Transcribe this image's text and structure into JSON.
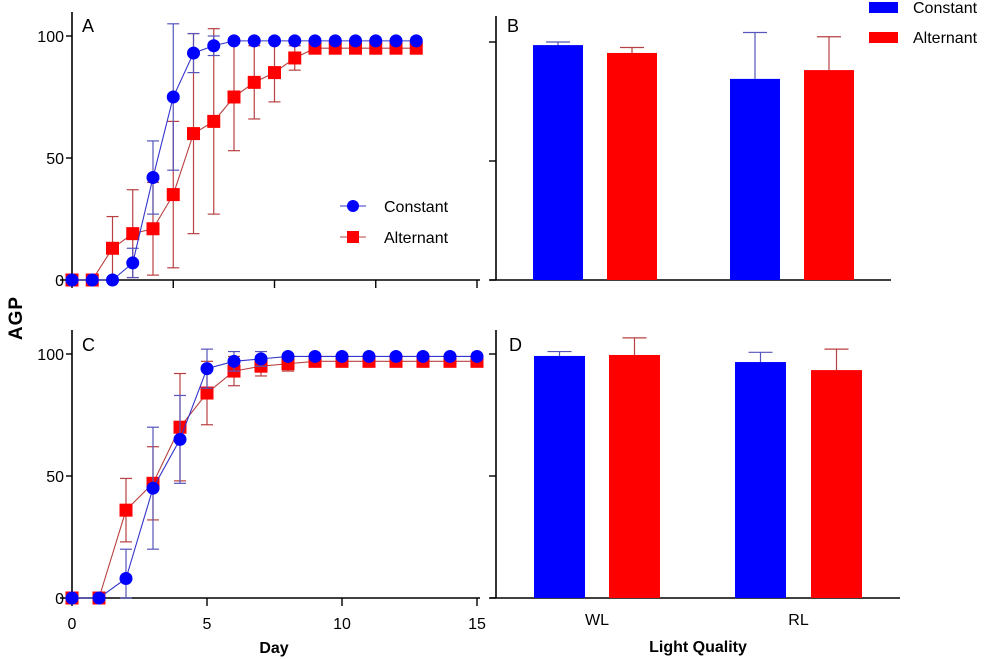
{
  "chart_data": [
    {
      "panel": "A",
      "type": "line",
      "xlabel": "",
      "ylabel": "AGP",
      "xlim": [
        0,
        20
      ],
      "ylim": [
        0,
        110
      ],
      "xticks": [
        0,
        5,
        10,
        15,
        20
      ],
      "xtick_labels": [
        "",
        "",
        "",
        "",
        ""
      ],
      "yticks": [
        0,
        50,
        100
      ],
      "ytick_labels": [
        "0",
        "50",
        "100"
      ],
      "x": [
        0,
        1,
        2,
        3,
        4,
        5,
        6,
        7,
        8,
        9,
        10,
        11,
        12,
        13,
        14,
        15,
        16,
        17
      ],
      "series": [
        {
          "name": "Constant",
          "color": "#0000ff",
          "marker": "circle",
          "values": [
            0,
            0,
            0,
            7,
            42,
            75,
            93,
            96,
            98,
            98,
            98,
            98,
            98,
            98,
            98,
            98,
            98,
            98
          ],
          "err": [
            0,
            0,
            0,
            6,
            15,
            30,
            8,
            4,
            0,
            0,
            0,
            0,
            0,
            0,
            0,
            0,
            0,
            0
          ]
        },
        {
          "name": "Alternant",
          "color": "#ff0000",
          "marker": "square",
          "values": [
            0,
            0,
            13,
            19,
            21,
            35,
            60,
            65,
            75,
            81,
            85,
            91,
            95,
            95,
            95,
            95,
            95,
            95
          ],
          "err": [
            0,
            0,
            13,
            18,
            19,
            30,
            41,
            38,
            22,
            15,
            12,
            5,
            1,
            1,
            1,
            1,
            1,
            1
          ]
        }
      ],
      "legend": {
        "entries": [
          "Constant",
          "Alternant"
        ],
        "placement": "center-right"
      }
    },
    {
      "panel": "B",
      "type": "bar",
      "categories": [
        "WL",
        "RL"
      ],
      "ylim": [
        0,
        110
      ],
      "yticks": [
        0,
        50,
        100
      ],
      "series": [
        {
          "name": "Constant",
          "color": "#0000ff",
          "values": [
            98.7,
            84.5
          ],
          "err": [
            1.3,
            19.5
          ]
        },
        {
          "name": "Alternant",
          "color": "#ff0000",
          "values": [
            95.4,
            88.2
          ],
          "err": [
            2.3,
            14
          ]
        }
      ],
      "legend": {
        "entries": [
          "Constant",
          "Alternant"
        ],
        "placement": "top-right"
      }
    },
    {
      "panel": "C",
      "type": "line",
      "xlabel": "Day",
      "ylabel": "AGP",
      "xlim": [
        0,
        15
      ],
      "ylim": [
        0,
        110
      ],
      "xticks": [
        0,
        5,
        10,
        15
      ],
      "xtick_labels": [
        "0",
        "5",
        "10",
        "15"
      ],
      "yticks": [
        0,
        50,
        100
      ],
      "ytick_labels": [
        "0",
        "50",
        "100"
      ],
      "x": [
        0,
        1,
        2,
        3,
        4,
        5,
        6,
        7,
        8,
        9,
        10,
        11,
        12,
        13,
        14,
        15
      ],
      "series": [
        {
          "name": "Constant",
          "color": "#0000ff",
          "marker": "circle",
          "values": [
            0,
            0,
            8,
            45,
            65,
            94,
            97,
            98,
            99,
            99,
            99,
            99,
            99,
            99,
            99,
            99
          ],
          "err": [
            0,
            0,
            12,
            25,
            18,
            8,
            4,
            3,
            0,
            0,
            0,
            0,
            0,
            0,
            0,
            0
          ]
        },
        {
          "name": "Alternant",
          "color": "#ff0000",
          "marker": "square",
          "values": [
            0,
            0,
            36,
            47,
            70,
            84,
            93,
            95,
            96,
            97,
            97,
            97,
            97,
            97,
            97,
            97
          ],
          "err": [
            0,
            0,
            13,
            15,
            22,
            13,
            6,
            4,
            3,
            2,
            2,
            1,
            1,
            1,
            1,
            1
          ]
        }
      ]
    },
    {
      "panel": "D",
      "type": "bar",
      "categories": [
        "WL",
        "RL"
      ],
      "xlabel": "Light Quality",
      "ylim": [
        0,
        110
      ],
      "yticks": [
        0,
        50,
        100
      ],
      "series": [
        {
          "name": "Constant",
          "color": "#0000ff",
          "values": [
            99.2,
            96.7
          ],
          "err": [
            1.8,
            4
          ]
        },
        {
          "name": "Alternant",
          "color": "#ff0000",
          "values": [
            99.6,
            93.4
          ],
          "err": [
            7,
            8.6
          ]
        }
      ]
    }
  ],
  "labels": {
    "ylabel": "AGP",
    "panel_a": "A",
    "panel_b": "B",
    "panel_c": "C",
    "panel_d": "D",
    "xlabel_day": "Day",
    "xlabel_light": "Light Quality",
    "legend_constant": "Constant",
    "legend_alternant": "Alternant"
  },
  "colors": {
    "constant": "#0000ff",
    "alternant": "#ff0000",
    "constant_err": "#5555bb",
    "alternant_err": "#b94040"
  }
}
